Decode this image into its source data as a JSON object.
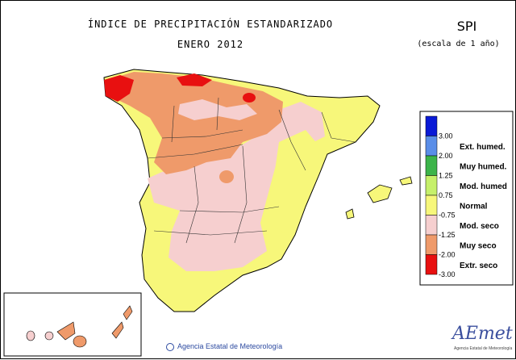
{
  "title_line1": "ÍNDICE DE PRECIPITACIÓN ESTANDARIZADO",
  "title_line2": "ENERO 2012",
  "index_short": "SPI",
  "scale_note": "(escala de 1 año)",
  "legend": {
    "values": [
      "3.00",
      "2.00",
      "1.25",
      "0.75",
      "-0.75",
      "-1.25",
      "-2.00",
      "-3.00"
    ],
    "classes": [
      "Ext. humed.",
      "Muy humed.",
      "Mod. humed",
      "Normal",
      "Mod. seco",
      "Muy seco",
      "Extr. seco"
    ],
    "colors": [
      "#0a1ad6",
      "#5a8ee8",
      "#3cb44a",
      "#c6f06a",
      "#f7f77a",
      "#f6cfcf",
      "#ef9a6a",
      "#e81010"
    ]
  },
  "footer_text": "Agencia Estatal de Meteorología",
  "logo_text": "AEmet",
  "logo_subtext": "Agencia Estatal de Meteorología"
}
